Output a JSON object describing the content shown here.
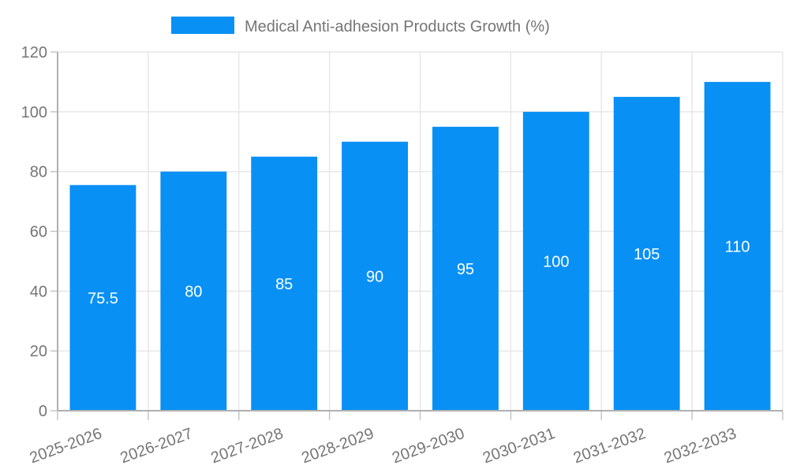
{
  "chart_data": {
    "type": "bar",
    "title": "Medical Anti-adhesion Products Growth (%)",
    "categories": [
      "2025-2026",
      "2026-2027",
      "2027-2028",
      "2028-2029",
      "2029-2030",
      "2030-2031",
      "2031-2032",
      "2032-2033"
    ],
    "values": [
      75.5,
      80,
      85,
      90,
      95,
      100,
      105,
      110
    ],
    "xlabel": "",
    "ylabel": "",
    "ylim": [
      0,
      120
    ],
    "yticks": [
      0,
      20,
      40,
      60,
      80,
      100,
      120
    ],
    "legend_position": "top",
    "grid": true,
    "x_label_rotation_deg": -20,
    "colors": {
      "bar": "#0990f5",
      "axis_text": "#757575",
      "value_label": "#ffffff",
      "grid_line": "#e6e6e6",
      "tick_line": "#c2c2c2",
      "axis_line": "#b0b0b0",
      "background": "#ffffff"
    }
  }
}
